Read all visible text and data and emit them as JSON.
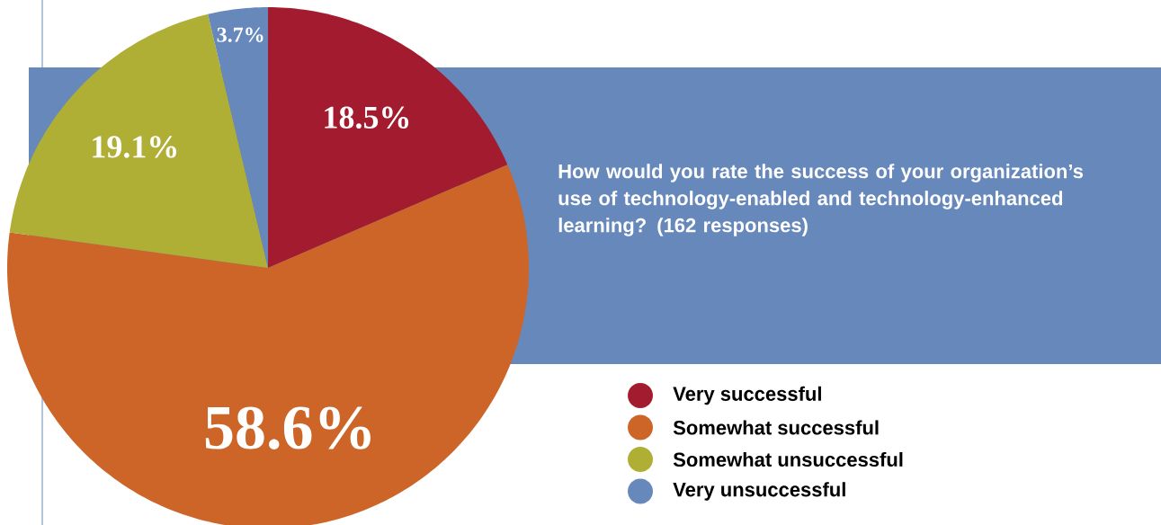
{
  "chart_data": {
    "type": "pie",
    "title": "How would you rate the success of your organization’s use of technology-enabled and technology-enhanced learning? (162 responses)",
    "categories": [
      "Very successful",
      "Somewhat successful",
      "Somewhat unsuccessful",
      "Very unsuccessful"
    ],
    "values": [
      18.5,
      58.6,
      19.1,
      3.7
    ],
    "colors": [
      "#a31b2e",
      "#cc6527",
      "#afae35",
      "#6688bb"
    ],
    "value_labels": [
      "18.5%",
      "58.6%",
      "19.1%",
      "3.7%"
    ],
    "legend": "bottom right"
  }
}
